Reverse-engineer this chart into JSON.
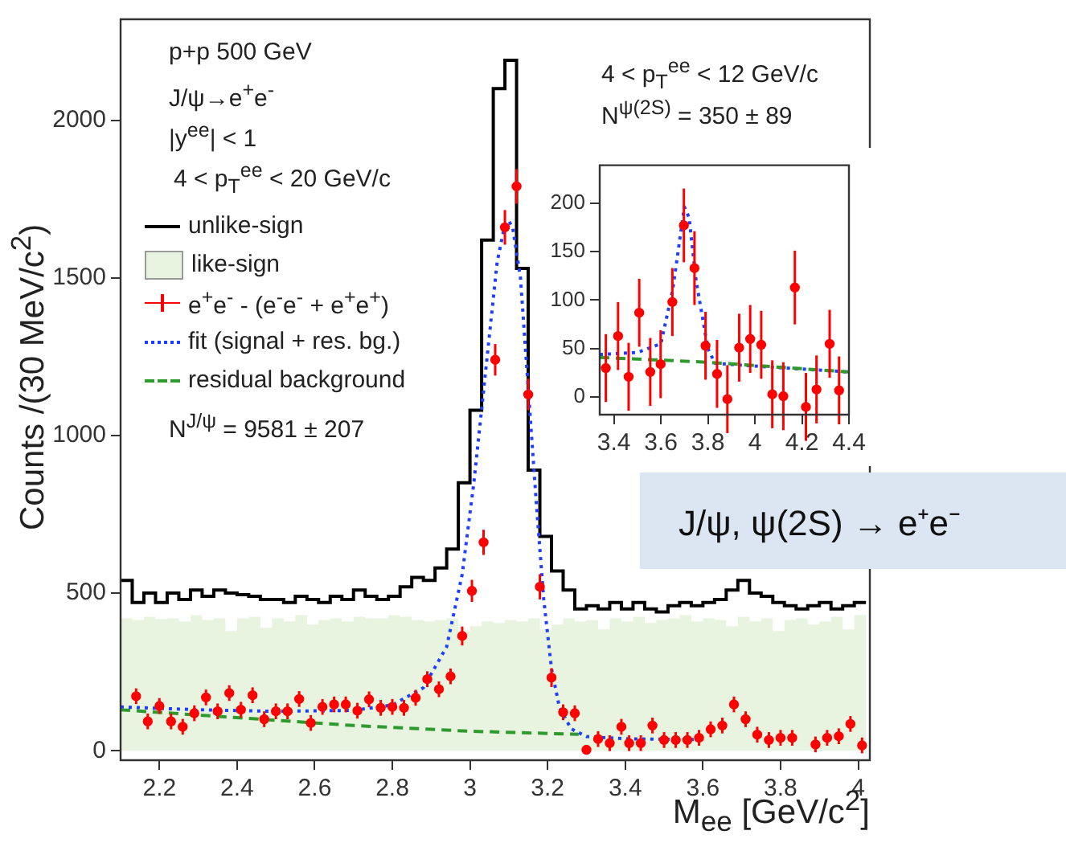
{
  "chart_data": [
    {
      "type": "histogram",
      "xlabel": "M$_{ee}$ [GeV/c$^{2}$]",
      "ylabel": "Counts /(30 MeV/c$^{2}$)",
      "annotations": [
        "p+p 500 GeV",
        "J/ψ→e$^{+}$e$^{-}$",
        "|y$^{ee}$| < 1",
        "4 < p$_{T}$$^{ee}$ < 20 GeV/c",
        "N$^{J/ψ}$ = 9581 ± 207",
        "J/ψ, ψ(2S) → e⁺e⁻"
      ],
      "xlim": [
        2.1,
        4.03
      ],
      "xticks": [
        2.2,
        2.4,
        2.6,
        2.8,
        3,
        3.2,
        3.4,
        3.6,
        3.8,
        4
      ],
      "ylim": [
        -30,
        2320
      ],
      "yticks": [
        0,
        500,
        1000,
        1500,
        2000
      ],
      "legend": "top left",
      "bins": [
        2.1,
        2.13,
        2.16,
        2.19,
        2.22,
        2.25,
        2.28,
        2.31,
        2.34,
        2.37,
        2.4,
        2.43,
        2.46,
        2.49,
        2.52,
        2.55,
        2.58,
        2.61,
        2.64,
        2.67,
        2.7,
        2.73,
        2.76,
        2.79,
        2.82,
        2.85,
        2.88,
        2.91,
        2.94,
        2.97,
        3,
        3.03,
        3.06,
        3.09,
        3.12,
        3.15,
        3.18,
        3.21,
        3.24,
        3.27,
        3.3,
        3.33,
        3.36,
        3.39,
        3.42,
        3.45,
        3.48,
        3.51,
        3.54,
        3.57,
        3.6,
        3.63,
        3.66,
        3.69,
        3.72,
        3.75,
        3.78,
        3.81,
        3.84,
        3.87,
        3.9,
        3.93,
        3.96,
        3.99,
        4.02
      ],
      "series": [
        {
          "name": "unlike-sign",
          "color": "#000000",
          "values": [
            540,
            470,
            500,
            470,
            500,
            480,
            510,
            490,
            510,
            500,
            495,
            490,
            480,
            480,
            470,
            490,
            480,
            470,
            490,
            480,
            510,
            490,
            480,
            490,
            520,
            550,
            540,
            580,
            640,
            850,
            1080,
            1620,
            2100,
            2190,
            1530,
            890,
            680,
            570,
            510,
            450,
            460,
            450,
            470,
            450,
            470,
            450,
            440,
            460,
            470,
            460,
            470,
            480,
            510,
            540,
            500,
            490,
            470,
            460,
            450,
            460,
            470,
            450,
            460,
            470
          ]
        },
        {
          "name": "like-sign",
          "color": "#e8f4e0",
          "values": [
            420,
            415,
            425,
            418,
            420,
            410,
            430,
            415,
            420,
            380,
            420,
            425,
            390,
            420,
            410,
            430,
            400,
            415,
            420,
            410,
            425,
            420,
            420,
            430,
            425,
            415,
            410,
            415,
            420,
            380,
            395,
            410,
            405,
            415,
            410,
            420,
            385,
            400,
            420,
            410,
            415,
            385,
            420,
            410,
            425,
            405,
            415,
            420,
            430,
            410,
            420,
            415,
            395,
            425,
            410,
            420,
            380,
            415,
            420,
            400,
            410,
            425,
            385,
            430
          ]
        },
        {
          "name": "e$^{+}$e$^{-}$ - (e$^{-}$e$^{-}$ + e$^{+}$e$^{+}$)",
          "type": "scatter",
          "color": "#ff0000",
          "marker": "circle",
          "x": [
            2.14,
            2.17,
            2.2,
            2.23,
            2.26,
            2.29,
            2.32,
            2.35,
            2.38,
            2.41,
            2.44,
            2.47,
            2.5,
            2.53,
            2.56,
            2.59,
            2.62,
            2.65,
            2.68,
            2.71,
            2.74,
            2.77,
            2.8,
            2.83,
            2.86,
            2.89,
            2.92,
            2.95,
            2.98,
            3.005,
            3.035,
            3.065,
            3.09,
            3.12,
            3.15,
            3.18,
            3.21,
            3.24,
            3.27,
            3.3,
            3.33,
            3.36,
            3.39,
            3.41,
            3.44,
            3.47,
            3.5,
            3.53,
            3.56,
            3.59,
            3.62,
            3.65,
            3.68,
            3.71,
            3.74,
            3.77,
            3.8,
            3.83,
            3.89,
            3.92,
            3.95,
            3.98,
            4.01
          ],
          "values": [
            173,
            93,
            142,
            93,
            76,
            119,
            169,
            125,
            183,
            130,
            176,
            100,
            125,
            125,
            164,
            88,
            139,
            147,
            147,
            127,
            163,
            136,
            139,
            136,
            168,
            227,
            195,
            236,
            364,
            507,
            661,
            1240,
            1660,
            1790,
            1130,
            520,
            232,
            122,
            119,
            3,
            37,
            24,
            76,
            24,
            24,
            80,
            34,
            34,
            34,
            41,
            68,
            80,
            147,
            100,
            51,
            34,
            41,
            41,
            20,
            41,
            46,
            85,
            17
          ],
          "errors": [
            25,
            25,
            25,
            25,
            25,
            25,
            25,
            25,
            25,
            25,
            25,
            25,
            25,
            25,
            25,
            25,
            25,
            25,
            25,
            25,
            25,
            25,
            25,
            25,
            25,
            25,
            25,
            25,
            30,
            35,
            40,
            50,
            55,
            55,
            50,
            40,
            30,
            25,
            25,
            null,
            25,
            25,
            25,
            25,
            25,
            25,
            25,
            25,
            25,
            25,
            25,
            25,
            25,
            25,
            25,
            25,
            25,
            25,
            25,
            25,
            25,
            25,
            25
          ]
        },
        {
          "name": "fit (signal + res. bg.)",
          "type": "line",
          "color": "#1f3fff",
          "line_style": "dotted",
          "x": [
            2.1,
            2.3,
            2.5,
            2.7,
            2.8,
            2.88,
            2.94,
            2.98,
            3.01,
            3.04,
            3.07,
            3.09,
            3.1,
            3.11,
            3.13,
            3.15,
            3.17,
            3.19,
            3.21,
            3.23,
            3.26,
            3.3,
            3.4,
            3.6
          ],
          "values": [
            139,
            130,
            125,
            128,
            145,
            200,
            330,
            560,
            850,
            1200,
            1550,
            1670,
            1680,
            1660,
            1500,
            1150,
            800,
            480,
            260,
            140,
            70,
            45,
            38,
            35
          ]
        },
        {
          "name": "residual background",
          "type": "line",
          "color": "#2e9a2e",
          "line_style": "dashed",
          "x": [
            2.1,
            2.4,
            2.7,
            3.0,
            3.28
          ],
          "values": [
            130,
            105,
            80,
            62,
            52
          ]
        }
      ]
    },
    {
      "type": "scatter",
      "annotations": [
        "4 < p$_{T}$$^{ee}$ < 12 GeV/c",
        "N$^{ψ(2S)}$ = 350 ± 89"
      ],
      "xlim": [
        3.34,
        4.4
      ],
      "xticks": [
        3.4,
        3.6,
        3.8,
        4,
        4.2,
        4.4
      ],
      "ylim": [
        -18,
        239
      ],
      "yticks": [
        0,
        50,
        100,
        150,
        200
      ],
      "series": [
        {
          "type": "line",
          "color": "#2e9a2e",
          "line_style": "dashed",
          "x": [
            3.34,
            3.8,
            4.4
          ],
          "values": [
            41,
            36,
            26
          ]
        },
        {
          "type": "line",
          "color": "#1f3fff",
          "line_style": "dotted",
          "x": [
            3.34,
            3.5,
            3.6,
            3.65,
            3.7,
            3.72,
            3.75,
            3.8,
            3.83,
            4.0,
            4.4
          ],
          "values": [
            44,
            46,
            55,
            110,
            196,
            185,
            120,
            50,
            35,
            32,
            26
          ]
        },
        {
          "color": "#ff0000",
          "marker": "circle",
          "x": [
            3.366,
            3.418,
            3.463,
            3.508,
            3.555,
            3.599,
            3.649,
            3.698,
            3.743,
            3.79,
            3.839,
            3.883,
            3.933,
            3.98,
            4.027,
            4.074,
            4.121,
            4.17,
            4.217,
            4.262,
            4.318,
            4.358
          ],
          "values": [
            30,
            63,
            21,
            87,
            26,
            34,
            98,
            177,
            133,
            53,
            24,
            -2,
            51,
            60,
            54,
            3,
            1,
            113,
            -10,
            8,
            55,
            7
          ],
          "errors": [
            35,
            35,
            35,
            35,
            35,
            35,
            35,
            38,
            38,
            35,
            35,
            35,
            35,
            35,
            35,
            35,
            35,
            38,
            35,
            35,
            35,
            35
          ]
        }
      ]
    }
  ]
}
